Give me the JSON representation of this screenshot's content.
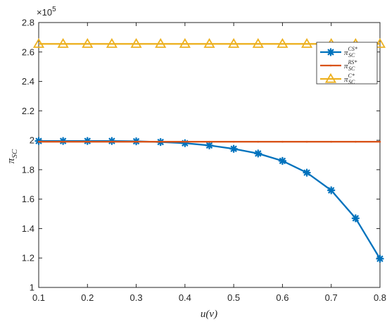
{
  "chart_data": {
    "type": "line",
    "xlabel": "u(v)",
    "ylabel_main": "π",
    "ylabel_sub": "SC",
    "sci_base": "×10",
    "sci_exp": "5",
    "xlim": [
      0.1,
      0.8
    ],
    "ylim": [
      1.0,
      2.8
    ],
    "x_ticks": [
      "0.1",
      "0.2",
      "0.3",
      "0.4",
      "0.5",
      "0.6",
      "0.7",
      "0.8"
    ],
    "y_ticks": [
      "1",
      "1.2",
      "1.4",
      "1.6",
      "1.8",
      "2",
      "2.2",
      "2.4",
      "2.6",
      "2.8"
    ],
    "x_tick_values": [
      0.1,
      0.2,
      0.3,
      0.4,
      0.5,
      0.6,
      0.7,
      0.8
    ],
    "y_tick_values": [
      1.0,
      1.2,
      1.4,
      1.6,
      1.8,
      2.0,
      2.2,
      2.4,
      2.6,
      2.8
    ],
    "grid": false,
    "legend_position": "top-right",
    "x": [
      0.1,
      0.15,
      0.2,
      0.25,
      0.3,
      0.35,
      0.4,
      0.45,
      0.5,
      0.55,
      0.6,
      0.65,
      0.7,
      0.75,
      0.8
    ],
    "series": [
      {
        "name_main": "π",
        "name_sub": "SC",
        "name_sup": "CS*",
        "color": "#0072BD",
        "marker": "asterisk",
        "values": [
          1.995,
          1.995,
          1.995,
          1.995,
          1.993,
          1.988,
          1.98,
          1.965,
          1.942,
          1.91,
          1.86,
          1.78,
          1.66,
          1.47,
          1.195
        ]
      },
      {
        "name_main": "π",
        "name_sub": "SC",
        "name_sup": "RS*",
        "color": "#D95319",
        "marker": "point",
        "values": [
          1.99,
          1.99,
          1.99,
          1.99,
          1.99,
          1.99,
          1.99,
          1.99,
          1.99,
          1.99,
          1.99,
          1.99,
          1.99,
          1.99,
          1.99
        ]
      },
      {
        "name_main": "π",
        "name_sub": "SC",
        "name_sup": "C*",
        "color": "#EDB120",
        "marker": "triangle",
        "values": [
          2.655,
          2.655,
          2.655,
          2.655,
          2.655,
          2.655,
          2.655,
          2.655,
          2.655,
          2.655,
          2.655,
          2.655,
          2.655,
          2.655,
          2.655
        ]
      }
    ]
  }
}
